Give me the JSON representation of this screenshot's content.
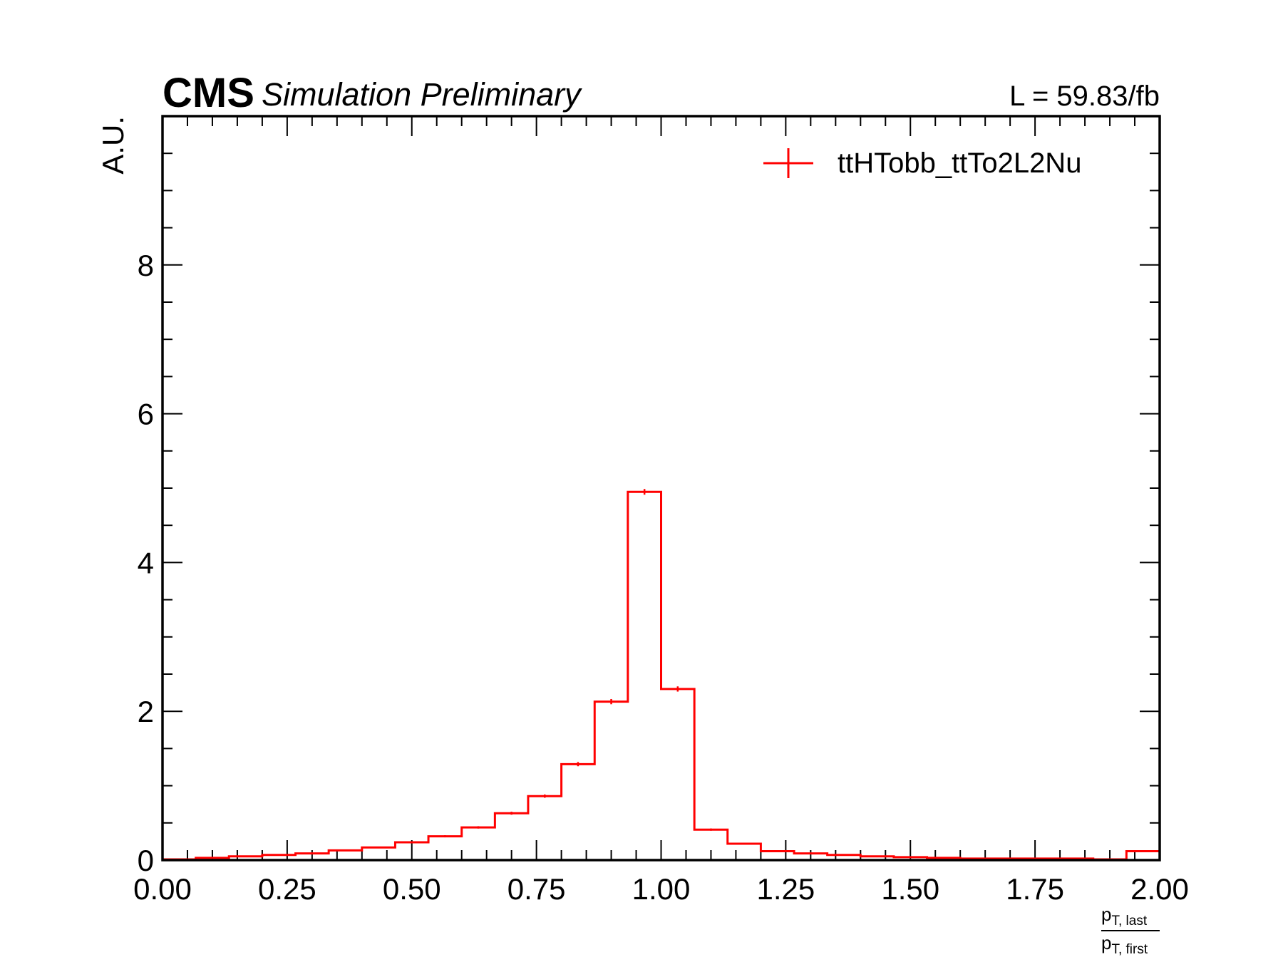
{
  "header": {
    "experiment": "CMS",
    "status": "Simulation Preliminary",
    "luminosity": "L = 59.83/fb"
  },
  "chart_data": {
    "type": "histogram",
    "ylabel": "A.U.",
    "xlabel": {
      "numerator": "p",
      "numerator_sub": "T, last",
      "denominator": "p",
      "denominator_sub": "T, first"
    },
    "xlim": [
      0,
      2
    ],
    "ylim": [
      0,
      10
    ],
    "x_ticks": [
      0,
      0.25,
      0.5,
      0.75,
      1.0,
      1.25,
      1.5,
      1.75,
      2.0
    ],
    "x_tick_labels": [
      "0.00",
      "0.25",
      "0.50",
      "0.75",
      "1.00",
      "1.25",
      "1.50",
      "1.75",
      "2.00"
    ],
    "y_ticks": [
      0,
      2,
      4,
      6,
      8
    ],
    "y_tick_labels": [
      "0",
      "2",
      "4",
      "6",
      "8"
    ],
    "legend_position": "top-right",
    "series": [
      {
        "name": "ttHTobb_ttTo2L2Nu",
        "color": "#ff0000",
        "bin_edges": [
          0,
          0.0667,
          0.1333,
          0.2,
          0.2667,
          0.3333,
          0.4,
          0.4667,
          0.5333,
          0.6,
          0.6667,
          0.7333,
          0.8,
          0.8667,
          0.9333,
          1.0,
          1.0667,
          1.1333,
          1.2,
          1.2667,
          1.3333,
          1.4,
          1.4667,
          1.5333,
          1.6,
          1.6667,
          1.7333,
          1.8,
          1.8667,
          1.9333,
          2.0
        ],
        "values": [
          0.01,
          0.03,
          0.05,
          0.07,
          0.09,
          0.13,
          0.17,
          0.24,
          0.32,
          0.44,
          0.63,
          0.86,
          1.29,
          2.13,
          4.95,
          2.3,
          0.41,
          0.22,
          0.12,
          0.09,
          0.07,
          0.05,
          0.04,
          0.03,
          0.02,
          0.02,
          0.02,
          0.02,
          0.01,
          0.12
        ],
        "errors": [
          0.005,
          0.005,
          0.006,
          0.007,
          0.008,
          0.009,
          0.01,
          0.012,
          0.014,
          0.016,
          0.02,
          0.022,
          0.028,
          0.035,
          0.05,
          0.035,
          0.015,
          0.01,
          0.008,
          0.007,
          0.006,
          0.005,
          0.005,
          0.004,
          0.004,
          0.004,
          0.004,
          0.004,
          0.003,
          0.01
        ]
      }
    ]
  }
}
